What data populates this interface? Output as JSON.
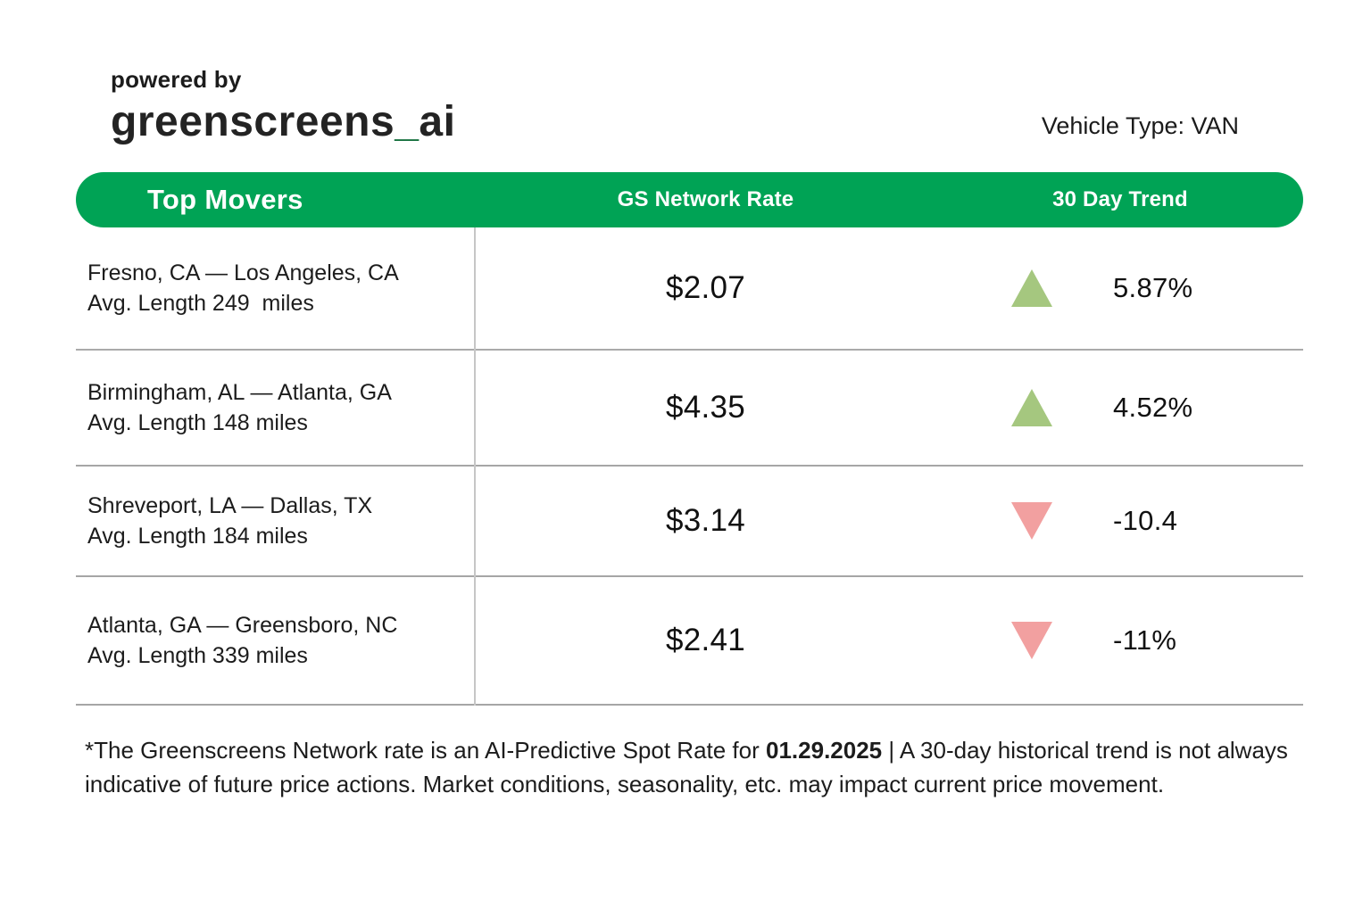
{
  "header": {
    "powered_by": "powered by",
    "logo_main": "greenscreens",
    "logo_underscore": "_",
    "logo_suffix": "ai",
    "vehicle_type": "Vehicle Type: VAN"
  },
  "table": {
    "columns": {
      "movers": "Top Movers",
      "rate": "GS Network Rate",
      "trend": "30 Day Trend"
    },
    "rows": [
      {
        "lane": "Fresno, CA — Los Angeles, CA",
        "avg_length": "Avg. Length 249  miles",
        "rate": "$2.07",
        "trend": "5.87%",
        "direction": "up"
      },
      {
        "lane": "Birmingham, AL — Atlanta, GA",
        "avg_length": "Avg. Length 148 miles",
        "rate": "$4.35",
        "trend": "4.52%",
        "direction": "up"
      },
      {
        "lane": "Shreveport, LA — Dallas, TX",
        "avg_length": "Avg. Length 184 miles",
        "rate": "$3.14",
        "trend": "-10.4",
        "direction": "down"
      },
      {
        "lane": "Atlanta, GA — Greensboro, NC",
        "avg_length": "Avg. Length 339 miles",
        "rate": "$2.41",
        "trend": "-11%",
        "direction": "down"
      }
    ]
  },
  "footnote": {
    "prefix": "*The Greenscreens Network rate is an AI-Predictive Spot Rate for ",
    "date": "01.29.2025",
    "suffix": " | A 30-day historical trend is not always indicative of future price actions. Market conditions, seasonality, etc. may impact current price movement."
  },
  "colors": {
    "brand_green": "#00A355",
    "logo_underscore_green": "#16703E",
    "trend_up": "#A5C77F",
    "trend_down": "#F2A0A0",
    "text": "#1C1C1C",
    "divider": "#A6A6A6"
  }
}
